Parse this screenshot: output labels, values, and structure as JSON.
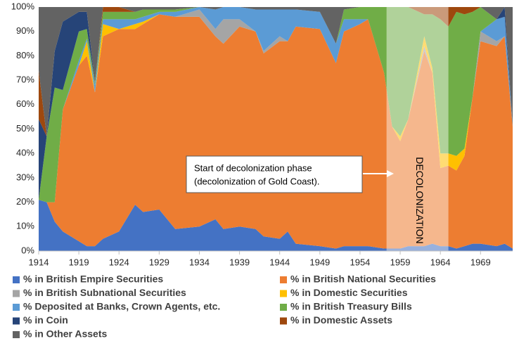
{
  "chart_data": {
    "type": "stacked_area",
    "x": [
      1914,
      1915,
      1916,
      1917,
      1919,
      1920,
      1921,
      1922,
      1924,
      1926,
      1927,
      1929,
      1931,
      1934,
      1936,
      1937,
      1939,
      1941,
      1942,
      1944,
      1945,
      1946,
      1949,
      1951,
      1952,
      1954,
      1955,
      1957,
      1958,
      1959,
      1960,
      1962,
      1963,
      1964,
      1965,
      1966,
      1967,
      1968,
      1969,
      1971,
      1972,
      1973
    ],
    "series": [
      {
        "name": "% in British Empire Securities",
        "color": "#4472c4",
        "values": [
          21,
          20,
          12,
          8,
          4,
          2,
          2,
          5,
          8,
          19,
          16,
          17,
          9,
          10,
          13,
          9,
          10,
          9,
          6,
          5,
          8,
          3,
          2,
          1,
          2,
          2,
          2,
          1,
          1,
          1,
          2,
          2,
          3,
          2,
          2,
          1,
          2,
          3,
          3,
          2,
          3,
          1
        ]
      },
      {
        "name": "% in British National Securities",
        "color": "#ed7d31",
        "values": [
          0,
          0,
          8,
          50,
          72,
          78,
          63,
          83,
          83,
          72,
          77,
          80,
          87,
          86,
          75,
          76,
          82,
          81,
          75,
          81,
          78,
          89,
          89,
          76,
          88,
          91,
          93,
          72,
          50,
          44,
          52,
          80,
          70,
          32,
          33,
          32,
          37,
          60,
          83,
          82,
          85,
          50
        ]
      },
      {
        "name": "% in British Subnational Securities",
        "color": "#a5a5a5",
        "values": [
          0,
          0,
          0,
          0,
          0,
          0,
          0,
          0,
          0,
          0,
          0,
          0,
          0,
          3,
          3,
          10,
          3,
          0,
          1,
          2,
          0,
          0,
          0,
          0,
          0,
          0,
          0,
          0,
          0,
          0,
          0,
          2,
          0,
          0,
          0,
          0,
          0,
          0,
          4,
          2,
          0,
          0
        ]
      },
      {
        "name": "% in Domestic Securities",
        "color": "#ffc000",
        "values": [
          0,
          0,
          0,
          0,
          0,
          6,
          0,
          5,
          0,
          2,
          1,
          0,
          0,
          0,
          0,
          0,
          0,
          0,
          0,
          0,
          0,
          0,
          0,
          0,
          0,
          0,
          0,
          0,
          0,
          2,
          0,
          4,
          2,
          6,
          5,
          6,
          3,
          0,
          0,
          0,
          0,
          0
        ]
      },
      {
        "name": "% Deposited at Banks, Crown Agents, etc.",
        "color": "#5b9bd5",
        "values": [
          0,
          0,
          0,
          0,
          2,
          1,
          3,
          2,
          4,
          2,
          2,
          1,
          2,
          1,
          8,
          5,
          5,
          9,
          17,
          11,
          13,
          7,
          7,
          8,
          5,
          2,
          0,
          0,
          0,
          0,
          0,
          0,
          0,
          0,
          0,
          0,
          0,
          0,
          0,
          9,
          8,
          0
        ]
      },
      {
        "name": "% in British Treasury Bills",
        "color": "#70ad47",
        "values": [
          0,
          27,
          47,
          8,
          12,
          4,
          1,
          3,
          3,
          3,
          3,
          1,
          1,
          0,
          0,
          0,
          0,
          0,
          0,
          0,
          0,
          0,
          0,
          0,
          4,
          5,
          5,
          27,
          49,
          53,
          46,
          9,
          22,
          55,
          52,
          59,
          55,
          35,
          10,
          0,
          0,
          0
        ]
      },
      {
        "name": "% in Coin",
        "color": "#264478",
        "values": [
          33,
          0,
          15,
          28,
          8,
          7,
          0,
          0,
          0,
          0,
          0,
          0,
          0,
          0,
          0,
          0,
          0,
          0,
          0,
          0,
          0,
          0,
          0,
          0,
          0,
          0,
          0,
          0,
          0,
          0,
          0,
          0,
          0,
          0,
          0,
          0,
          0,
          0,
          0,
          0,
          4,
          0
        ]
      },
      {
        "name": "% in Domestic Assets",
        "color": "#9e480e",
        "values": [
          20,
          0,
          0,
          0,
          0,
          0,
          0,
          2,
          2,
          0,
          0,
          0,
          0,
          0,
          0,
          0,
          0,
          0,
          0,
          0,
          0,
          0,
          0,
          0,
          0,
          0,
          0,
          0,
          0,
          0,
          0,
          3,
          3,
          5,
          8,
          2,
          3,
          2,
          0,
          0,
          0,
          0
        ]
      },
      {
        "name": "% in Other Assets",
        "color": "#636363",
        "values": [
          26,
          53,
          18,
          6,
          2,
          2,
          31,
          0,
          0,
          2,
          1,
          1,
          1,
          0,
          1,
          0,
          0,
          1,
          1,
          1,
          1,
          1,
          2,
          15,
          1,
          0,
          0,
          0,
          0,
          0,
          0,
          0,
          0,
          0,
          0,
          0,
          0,
          0,
          0,
          5,
          0,
          49
        ]
      }
    ],
    "xlim": [
      1914,
      1973
    ],
    "xticks": [
      1914,
      1919,
      1924,
      1929,
      1934,
      1939,
      1944,
      1949,
      1954,
      1959,
      1964,
      1969
    ],
    "ylim": [
      0,
      100
    ],
    "yticks": [
      {
        "value": 0,
        "label": "0%"
      },
      {
        "value": 10,
        "label": "10%"
      },
      {
        "value": 20,
        "label": "20%"
      },
      {
        "value": 30,
        "label": "30%"
      },
      {
        "value": 40,
        "label": "40%"
      },
      {
        "value": 50,
        "label": "50%"
      },
      {
        "value": 60,
        "label": "60%"
      },
      {
        "value": 70,
        "label": "70%"
      },
      {
        "value": 80,
        "label": "80%"
      },
      {
        "value": 90,
        "label": "90%"
      },
      {
        "value": 100,
        "label": "100%"
      }
    ],
    "shade": {
      "range": [
        1957.3,
        1965
      ],
      "label": "DECOLONIZATION"
    },
    "annotation": {
      "lines": [
        "Start of decolonization phase",
        "(decolonization of Gold Coast)."
      ]
    }
  }
}
